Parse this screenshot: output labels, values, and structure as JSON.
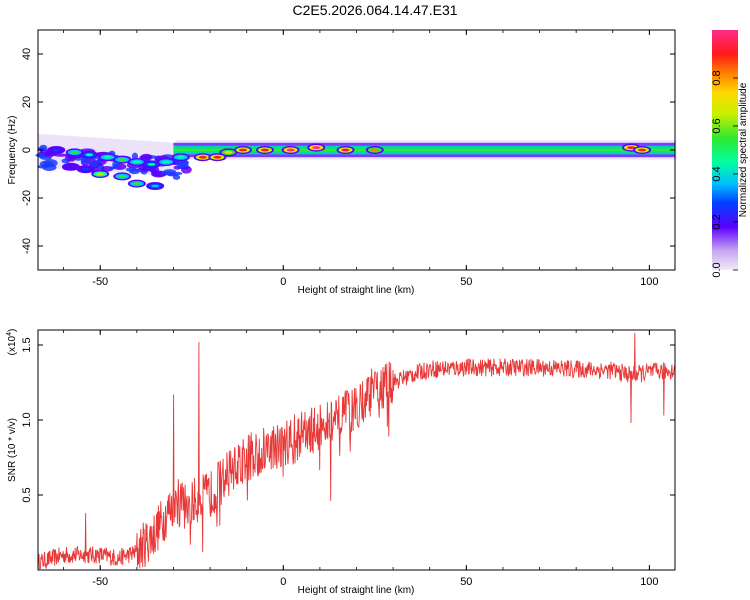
{
  "chart_data": [
    {
      "type": "heatmap",
      "title": "C2E5.2026.064.14.47.E31",
      "xlabel": "Height of straight line (km)",
      "ylabel": "Frequency (Hz)",
      "xlim": [
        -67,
        107
      ],
      "ylim": [
        -50,
        50
      ],
      "xticks": [
        -50,
        0,
        50,
        100
      ],
      "yticks": [
        -40,
        -20,
        0,
        20,
        40
      ],
      "colorbar": {
        "label": "Normalized spectral amplitude",
        "range": [
          0,
          1
        ],
        "ticks": [
          "0.0",
          "0.2",
          "0.4",
          "0.6",
          "0.8"
        ]
      },
      "blobs": [
        {
          "x": -62,
          "y": 0,
          "amp": 0.3
        },
        {
          "x": -57,
          "y": -1,
          "amp": 0.55
        },
        {
          "x": -53,
          "y": -2,
          "amp": 0.45
        },
        {
          "x": -48,
          "y": -3,
          "amp": 0.5
        },
        {
          "x": -44,
          "y": -4,
          "amp": 0.55
        },
        {
          "x": -40,
          "y": -5,
          "amp": 0.5
        },
        {
          "x": -36,
          "y": -6,
          "amp": 0.45
        },
        {
          "x": -32,
          "y": -5,
          "amp": 0.5
        },
        {
          "x": -28,
          "y": -3,
          "amp": 0.5
        },
        {
          "x": -22,
          "y": -3,
          "amp": 0.9
        },
        {
          "x": -18,
          "y": -3,
          "amp": 0.95
        },
        {
          "x": -15,
          "y": -1,
          "amp": 0.8
        },
        {
          "x": -11,
          "y": 0,
          "amp": 0.9
        },
        {
          "x": -5,
          "y": 0,
          "amp": 0.95
        },
        {
          "x": 2,
          "y": 0,
          "amp": 1.0
        },
        {
          "x": 9,
          "y": 1,
          "amp": 1.0
        },
        {
          "x": 17,
          "y": 0,
          "amp": 0.9
        },
        {
          "x": 25,
          "y": 0,
          "amp": 0.85
        },
        {
          "x": 95,
          "y": 1,
          "amp": 0.95
        },
        {
          "x": 98,
          "y": 0,
          "amp": 0.9
        },
        {
          "x": -50,
          "y": -10,
          "amp": 0.7
        },
        {
          "x": -44,
          "y": -11,
          "amp": 0.55
        },
        {
          "x": -40,
          "y": -14,
          "amp": 0.6
        },
        {
          "x": -35,
          "y": -15,
          "amp": 0.4
        },
        {
          "x": -58,
          "y": -7,
          "amp": 0.25
        },
        {
          "x": -54,
          "y": -8,
          "amp": 0.3
        }
      ],
      "band": {
        "x": [
          -30,
          107
        ],
        "y": 0,
        "amp": 0.55
      }
    },
    {
      "type": "line",
      "title": "",
      "xlabel": "Height of straight line (km)",
      "ylabel": "SNR (10 * v/v)",
      "yscale_label": "(x10",
      "yscale_exp": "4",
      "xlim": [
        -67,
        107
      ],
      "ylim": [
        0,
        1.6
      ],
      "xticks": [
        -50,
        0,
        50,
        100
      ],
      "yticks": [
        0.5,
        1.0,
        1.5
      ],
      "yticklabels": [
        "0.5",
        "1.0",
        "1.5"
      ],
      "color": "#e83838",
      "envelope": [
        [
          -67,
          0.05
        ],
        [
          -60,
          0.1
        ],
        [
          -50,
          0.1
        ],
        [
          -45,
          0.08
        ],
        [
          -40,
          0.12
        ],
        [
          -35,
          0.25
        ],
        [
          -30,
          0.45
        ],
        [
          -25,
          0.45
        ],
        [
          -20,
          0.5
        ],
        [
          -15,
          0.65
        ],
        [
          -10,
          0.75
        ],
        [
          -5,
          0.8
        ],
        [
          0,
          0.85
        ],
        [
          5,
          0.9
        ],
        [
          10,
          0.95
        ],
        [
          15,
          1.0
        ],
        [
          20,
          1.1
        ],
        [
          25,
          1.2
        ],
        [
          30,
          1.25
        ],
        [
          35,
          1.3
        ],
        [
          40,
          1.34
        ],
        [
          50,
          1.35
        ],
        [
          60,
          1.35
        ],
        [
          70,
          1.35
        ],
        [
          80,
          1.34
        ],
        [
          90,
          1.33
        ],
        [
          95,
          1.3
        ],
        [
          100,
          1.32
        ],
        [
          107,
          1.33
        ]
      ],
      "spikes": [
        {
          "x": -30,
          "y": 1.17
        },
        {
          "x": -23,
          "y": 1.52
        },
        {
          "x": -22,
          "y": 0.12
        },
        {
          "x": -54,
          "y": 0.38
        },
        {
          "x": 13,
          "y": 0.46
        },
        {
          "x": 96,
          "y": 1.58
        },
        {
          "x": 95,
          "y": 0.98
        },
        {
          "x": 104,
          "y": 1.03
        }
      ]
    }
  ]
}
